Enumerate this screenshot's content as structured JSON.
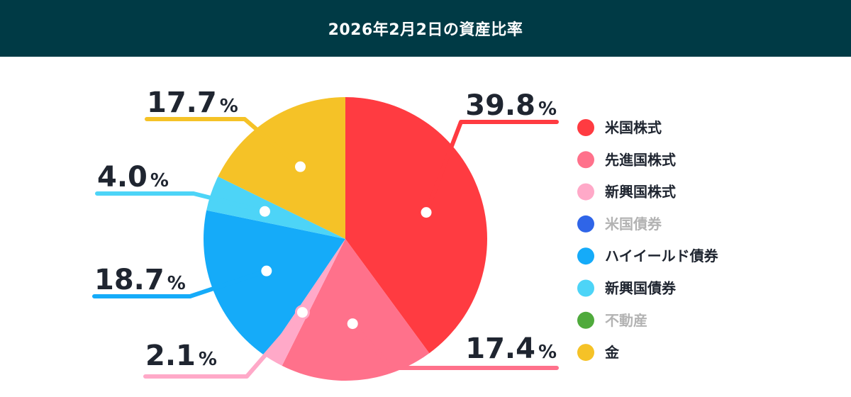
{
  "header": {
    "title": "2026年2月2日の資産比率"
  },
  "chart_data": {
    "type": "pie",
    "title": "2026年2月2日の資産比率",
    "unit": "%",
    "slices": [
      {
        "label": "米国株式",
        "value": 39.8,
        "color": "#ff3b41",
        "active": true
      },
      {
        "label": "先進国株式",
        "value": 17.4,
        "color": "#ff718b",
        "active": true
      },
      {
        "label": "新興国株式",
        "value": 2.1,
        "color": "#ffa9c8",
        "active": true
      },
      {
        "label": "米国債券",
        "value": 0,
        "color": "#2f65e8",
        "active": false
      },
      {
        "label": "ハイイールド債券",
        "value": 18.7,
        "color": "#15abf9",
        "active": true
      },
      {
        "label": "新興国債券",
        "value": 4.0,
        "color": "#4dd4f7",
        "active": true
      },
      {
        "label": "不動産",
        "value": 0,
        "color": "#4faa3c",
        "active": false
      },
      {
        "label": "金",
        "value": 17.7,
        "color": "#f5c227",
        "active": true
      }
    ],
    "value_labels": [
      "39.8",
      "17.4",
      "2.1",
      "",
      "18.7",
      "4.0",
      "",
      "17.7"
    ],
    "legend_position": "right",
    "inactive_text_color": "#b3b3b3",
    "active_text_color": "#1f2530"
  }
}
